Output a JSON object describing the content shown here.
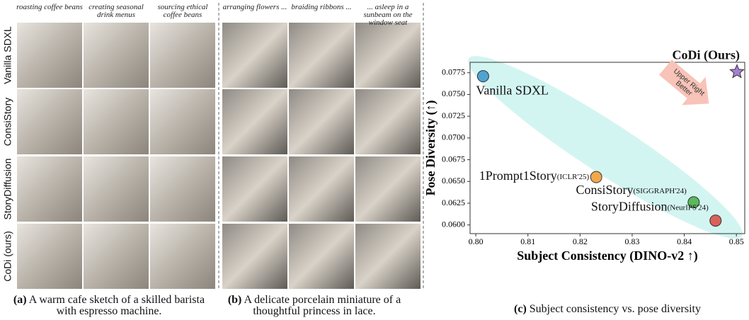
{
  "rows": [
    "Vanilla SDXL",
    "ConsiStory",
    "StoryDiffusion",
    "CoDi (ours)"
  ],
  "panels": [
    {
      "columns": [
        "roasting coffee beans",
        "creating seasonal drink menus",
        "sourcing ethical coffee beans"
      ],
      "caption_label": "(a)",
      "caption": "A warm cafe sketch of a skilled barista with espresso machine."
    },
    {
      "columns": [
        "arranging flowers ...",
        "braiding ribbons ...",
        "... asleep in a sunbeam on the window seat"
      ],
      "caption_label": "(b)",
      "caption": "A delicate porcelain miniature of a thoughtful princess in lace."
    }
  ],
  "chart_data": {
    "type": "scatter",
    "xlabel": "Subject Consistency (DINO-v2 ↑)",
    "ylabel": "Pose Diversity (↑)",
    "caption_label": "(c)",
    "caption": "Subject consistency vs. pose diversity",
    "annotation": [
      "Upper Right",
      "Better"
    ],
    "xlim": [
      0.7989,
      0.8516
    ],
    "ylim": [
      0.059,
      0.0787
    ],
    "xticks": [
      {
        "value": 0.8,
        "label": "0.80"
      },
      0.81,
      0.82,
      0.83,
      0.84,
      0.85
    ],
    "yticks": [
      {
        "value": 0.06,
        "label": "0.0600"
      },
      0.0625,
      {
        "value": 0.065,
        "label": "0.0650"
      },
      0.0675,
      {
        "value": 0.07,
        "label": "0.0700"
      },
      0.0725,
      {
        "value": 0.075,
        "label": "0.0750"
      },
      0.0775
    ],
    "series": [
      {
        "name": "Vanilla SDXL",
        "color": "#4fa3d1",
        "marker": "circle",
        "x": [
          0.8014
        ],
        "values": [
          0.0771
        ]
      },
      {
        "name": "CoDi (Ours)",
        "color": "#a87fd8",
        "marker": "star",
        "x": [
          0.8501
        ],
        "values": [
          0.0776
        ]
      },
      {
        "name": "1Prompt1Story",
        "venue": "(ICLR'25)",
        "color": "#f0a84a",
        "marker": "circle",
        "x": [
          0.8231
        ],
        "values": [
          0.0655
        ]
      },
      {
        "name": "ConsiStory",
        "venue": "(SIGGRAPH'24)",
        "color": "#5cb85c",
        "marker": "circle",
        "x": [
          0.8418
        ],
        "values": [
          0.0626
        ]
      },
      {
        "name": "StoryDiffusion",
        "venue": "(NeurIPS'24)",
        "color": "#d9625a",
        "marker": "circle",
        "x": [
          0.846
        ],
        "values": [
          0.0605
        ]
      }
    ]
  }
}
